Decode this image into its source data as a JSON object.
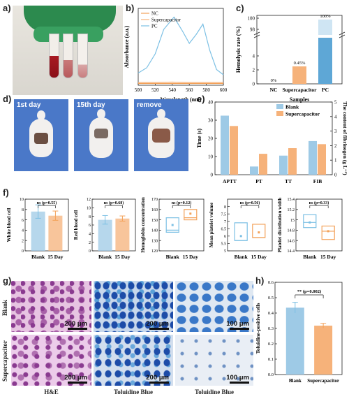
{
  "panels": {
    "a": {
      "label": "a)"
    },
    "b": {
      "label": "b)"
    },
    "c": {
      "label": "c)"
    },
    "d": {
      "label": "d)",
      "captions": [
        "1st day",
        "15th day",
        "remove"
      ]
    },
    "e": {
      "label": "e)"
    },
    "f": {
      "label": "f)"
    },
    "g": {
      "label": "g)",
      "row_labels": [
        "Blank",
        "Supercapacitor"
      ],
      "column_labels": [
        "H&E",
        "Toluidine Blue",
        "Toluidine Blue"
      ],
      "scale_bars": [
        "200 μm",
        "200 μm",
        "100 μm",
        "200 μm",
        "200 μm",
        "100 μm"
      ]
    },
    "h": {
      "label": "h)"
    }
  },
  "colors": {
    "blank": "#9ecae6",
    "supercap": "#f6b27a",
    "blank_line": "#7cc0e4",
    "supercap_line": "#f3a25a",
    "stain_blue": "#2e5aa8",
    "he_purple": "#9b4a9e"
  },
  "chart_data": [
    {
      "id": "b",
      "type": "line",
      "xlabel": "Wavelength (nm)",
      "ylabel": "Absorbance (a.u.)",
      "xlim": [
        500,
        600
      ],
      "xticks": [
        500,
        520,
        540,
        560,
        580,
        600
      ],
      "legend": "top-left",
      "series": [
        {
          "name": "NC",
          "x": [
            500,
            520,
            540,
            560,
            580,
            600
          ],
          "y": [
            0.05,
            0.05,
            0.05,
            0.05,
            0.05,
            0.05
          ]
        },
        {
          "name": "Supercapacitor",
          "x": [
            500,
            520,
            540,
            560,
            580,
            600
          ],
          "y": [
            0.08,
            0.08,
            0.09,
            0.08,
            0.08,
            0.08
          ]
        },
        {
          "name": "PC",
          "x": [
            500,
            510,
            520,
            530,
            542,
            552,
            560,
            568,
            576,
            584,
            592,
            600
          ],
          "y": [
            0.35,
            0.5,
            0.9,
            1.6,
            1.95,
            1.55,
            1.2,
            1.45,
            1.75,
            1.0,
            0.45,
            0.3
          ]
        }
      ]
    },
    {
      "id": "c",
      "type": "bar",
      "xlabel": "Samples",
      "ylabel": "Hemolysis rate (%)",
      "categories": [
        "NC",
        "Supercapacitor",
        "PC"
      ],
      "values": [
        0,
        0.45,
        100
      ],
      "data_labels": [
        "0%",
        "0.45%",
        "100%"
      ],
      "yticks": [
        "0",
        "2",
        "4",
        "98",
        "100"
      ]
    },
    {
      "id": "e",
      "type": "bar",
      "ylabel": "Time (s)",
      "y2label": "The content of fibrinogen (g L⁻¹)",
      "ylim": [
        0,
        40
      ],
      "y2lim": [
        0,
        5
      ],
      "yticks": [
        0,
        10,
        20,
        30,
        40
      ],
      "y2ticks": [
        0,
        1,
        2,
        3,
        4,
        5
      ],
      "categories": [
        "APTT",
        "PT",
        "TT",
        "FIB"
      ],
      "legend": "top-right",
      "series": [
        {
          "name": "Blank",
          "values": [
            32.5,
            4.5,
            10.5,
            18.5
          ]
        },
        {
          "name": "Supercapacitor",
          "values": [
            26.8,
            11.5,
            14.6,
            16.8
          ]
        }
      ]
    },
    {
      "id": "f1",
      "type": "bar",
      "ylabel": "White blood cell",
      "categories": [
        "Blank",
        "15 Day"
      ],
      "values": [
        7.6,
        6.8
      ],
      "errors": [
        1.3,
        0.9
      ],
      "ylim": [
        0,
        10
      ],
      "yticks": [
        0,
        2,
        4,
        6,
        8,
        10
      ],
      "annotation": "ns (p=0.55)"
    },
    {
      "id": "f2",
      "type": "bar",
      "ylabel": "Red blood cell",
      "categories": [
        "Blank",
        "15 Day"
      ],
      "values": [
        7.2,
        7.5
      ],
      "errors": [
        1.0,
        0.6
      ],
      "ylim": [
        0,
        12
      ],
      "yticks": [
        0,
        2,
        4,
        6,
        8,
        10,
        12
      ],
      "annotation": "ns (p=0.68)"
    },
    {
      "id": "f3",
      "type": "box",
      "ylabel": "Hemoglobin concentration",
      "categories": [
        "Blank",
        "15 Day"
      ],
      "boxes": [
        {
          "q1": 138,
          "q3": 152,
          "median": 140,
          "mean": 145
        },
        {
          "q1": 150,
          "q3": 160,
          "median": 152,
          "mean": 156
        }
      ],
      "ylim": [
        120,
        170
      ],
      "yticks": [
        120,
        130,
        140,
        150,
        160,
        170
      ],
      "annotation": "ns (p=0.12)"
    },
    {
      "id": "f4",
      "type": "box",
      "ylabel": "Mean platelet volume",
      "categories": [
        "Blank",
        "15 Day"
      ],
      "boxes": [
        {
          "q1": 5.7,
          "q3": 6.9,
          "median": 5.7,
          "mean": 6.0
        },
        {
          "q1": 5.9,
          "q3": 6.8,
          "median": 5.9,
          "mean": 6.25
        }
      ],
      "ylim": [
        5.0,
        8.5
      ],
      "yticks": [
        5.0,
        5.5,
        6.0,
        6.5,
        7.0,
        7.5,
        8.0
      ],
      "annotation": "ns (p=0.56)"
    },
    {
      "id": "f5",
      "type": "box",
      "ylabel": "Platelet distribution width",
      "categories": [
        "Blank",
        "15 Day"
      ],
      "boxes": [
        {
          "q1": 14.85,
          "q3": 15.1,
          "median": 14.95,
          "mean": 14.95
        },
        {
          "q1": 14.62,
          "q3": 14.88,
          "median": 14.78,
          "mean": 14.78
        }
      ],
      "ylim": [
        14.4,
        15.4
      ],
      "yticks": [
        14.4,
        14.6,
        14.8,
        15.0,
        15.2,
        15.4
      ],
      "annotation": "ns (p=0.33)"
    },
    {
      "id": "h",
      "type": "bar",
      "ylabel": "Toluidine-positive cells",
      "categories": [
        "Blank",
        "Supercapacitor"
      ],
      "values": [
        0.435,
        0.318
      ],
      "errors": [
        0.035,
        0.015
      ],
      "ylim": [
        0,
        0.6
      ],
      "yticks": [
        0.0,
        0.1,
        0.2,
        0.3,
        0.4,
        0.5,
        0.6
      ],
      "annotation": "** (p=0.002)"
    }
  ]
}
